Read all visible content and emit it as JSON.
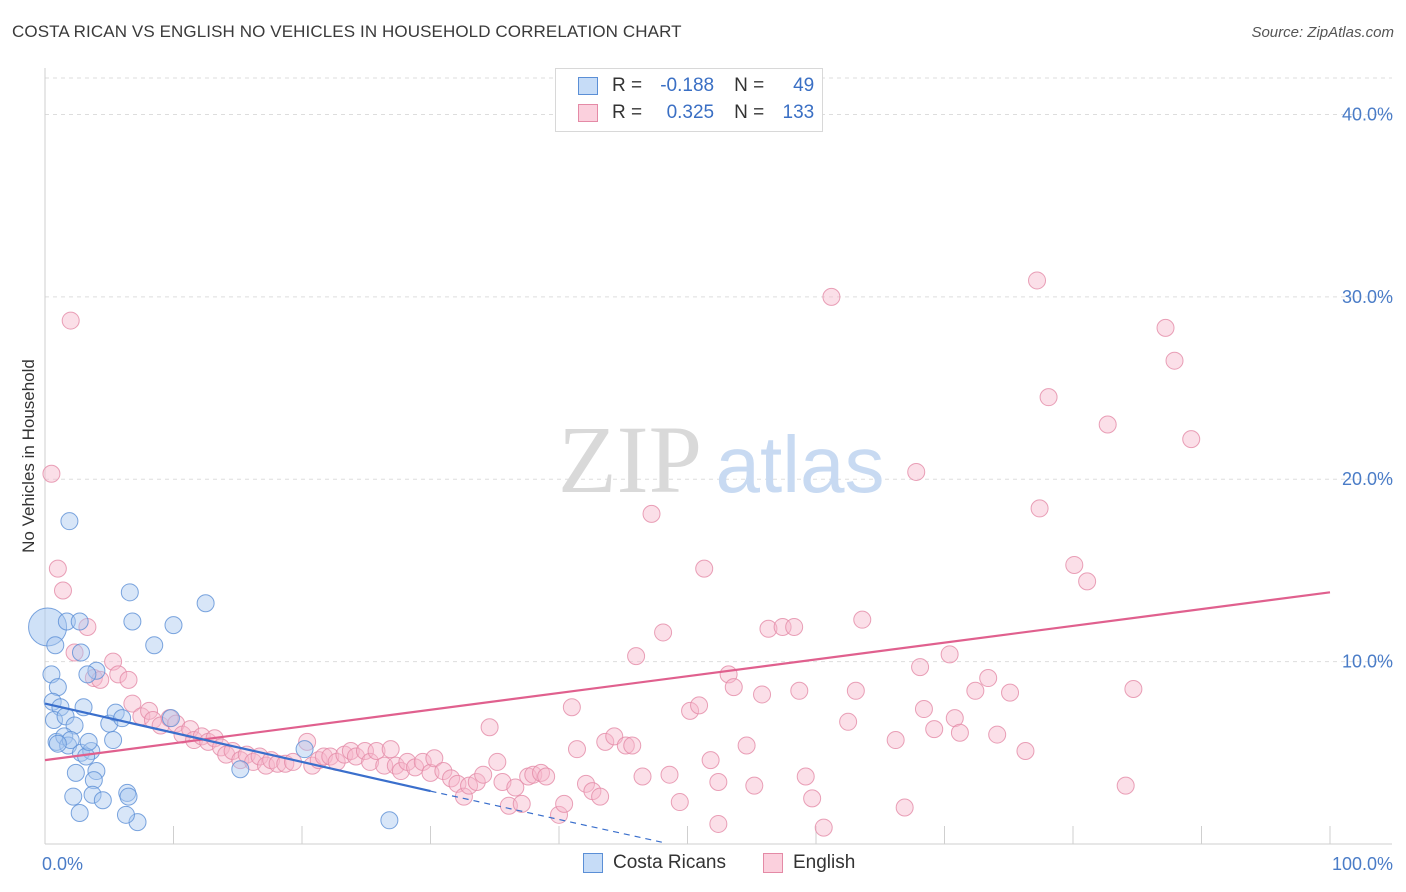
{
  "title": "COSTA RICAN VS ENGLISH NO VEHICLES IN HOUSEHOLD CORRELATION CHART",
  "source": "Source: ZipAtlas.com",
  "watermark": {
    "zip": "ZIP",
    "atlas": "atlas"
  },
  "legend_top": {
    "rows": [
      {
        "r_label": "R =",
        "r_value": "-0.188",
        "n_label": "N =",
        "n_value": "49"
      },
      {
        "r_label": "R =",
        "r_value": "0.325",
        "n_label": "N =",
        "n_value": "133"
      }
    ]
  },
  "legend_bottom": {
    "costa": "Costa Ricans",
    "english": "English"
  },
  "colors": {
    "costa_fill": "#a8c8f0",
    "costa_stroke": "#5b8fd6",
    "costa_line": "#3a6fcc",
    "english_fill": "#f7b8cb",
    "english_stroke": "#e48aa6",
    "english_line": "#e0608e",
    "tick": "#4a7cc7",
    "grid": "#dddddd"
  },
  "chart_data": {
    "type": "scatter",
    "title": "COSTA RICAN VS ENGLISH NO VEHICLES IN HOUSEHOLD CORRELATION CHART",
    "xlabel": "",
    "ylabel": "No Vehicles in Household",
    "xlim": [
      0,
      100
    ],
    "ylim": [
      0,
      42
    ],
    "x_tick_labels": [
      {
        "value": 0,
        "label": "0.0%"
      },
      {
        "value": 100,
        "label": "100.0%"
      }
    ],
    "y_tick_labels": [
      {
        "value": 10,
        "label": "10.0%"
      },
      {
        "value": 20,
        "label": "20.0%"
      },
      {
        "value": 30,
        "label": "30.0%"
      },
      {
        "value": 40,
        "label": "40.0%"
      }
    ],
    "x_minor_ticks": [
      10,
      20,
      30,
      40,
      50,
      60,
      70,
      80,
      90,
      100
    ],
    "series": [
      {
        "name": "Costa Ricans",
        "R": -0.188,
        "N": 49,
        "trend": {
          "x0": 0,
          "y0": 7.7,
          "x1": 30,
          "y1": 2.9,
          "dash_x1": 48,
          "dash_y1": 0.1
        },
        "points": [
          [
            0.2,
            11.9,
            "big"
          ],
          [
            0.5,
            9.3
          ],
          [
            0.8,
            10.9
          ],
          [
            1,
            8.6
          ],
          [
            0.6,
            7.8
          ],
          [
            1.2,
            7.5
          ],
          [
            0.7,
            6.8
          ],
          [
            1.6,
            7.0
          ],
          [
            2.3,
            6.5
          ],
          [
            0.9,
            5.6
          ],
          [
            1.5,
            5.9
          ],
          [
            1.8,
            5.4
          ],
          [
            2.0,
            5.7
          ],
          [
            2.8,
            5.0
          ],
          [
            3.6,
            5.1
          ],
          [
            3.2,
            4.8
          ],
          [
            4,
            9.5
          ],
          [
            2.8,
            10.5
          ],
          [
            3.3,
            9.3
          ],
          [
            1.7,
            12.2
          ],
          [
            2.7,
            12.2
          ],
          [
            1.9,
            17.7
          ],
          [
            6.6,
            13.8
          ],
          [
            6.8,
            12.2
          ],
          [
            8.5,
            10.9
          ],
          [
            10,
            12.0
          ],
          [
            12.5,
            13.2
          ],
          [
            3,
            7.5
          ],
          [
            5,
            6.6
          ],
          [
            5.5,
            7.2
          ],
          [
            6,
            6.9
          ],
          [
            4,
            4.0
          ],
          [
            2.4,
            3.9
          ],
          [
            3.8,
            3.5
          ],
          [
            2.2,
            2.6
          ],
          [
            3.7,
            2.7
          ],
          [
            2.7,
            1.7
          ],
          [
            4.5,
            2.4
          ],
          [
            6.4,
            2.8
          ],
          [
            6.5,
            2.6
          ],
          [
            7.2,
            1.2
          ],
          [
            6.3,
            1.6
          ],
          [
            15.2,
            4.1
          ],
          [
            9.8,
            6.9
          ],
          [
            26.8,
            1.3
          ],
          [
            20.2,
            5.2
          ],
          [
            1.0,
            5.5
          ],
          [
            3.4,
            5.6
          ],
          [
            5.3,
            5.7
          ]
        ]
      },
      {
        "name": "English",
        "R": 0.325,
        "N": 133,
        "trend": {
          "x0": 0,
          "y0": 4.6,
          "x1": 100,
          "y1": 13.8
        },
        "points": [
          [
            0.5,
            20.3
          ],
          [
            1.0,
            15.1
          ],
          [
            1.4,
            13.9
          ],
          [
            2.0,
            28.7
          ],
          [
            2.3,
            10.5
          ],
          [
            3.3,
            11.9
          ],
          [
            3.8,
            9.1
          ],
          [
            4.3,
            9.0
          ],
          [
            5.3,
            10.0
          ],
          [
            5.7,
            9.3
          ],
          [
            6.5,
            9.0
          ],
          [
            6.8,
            7.7
          ],
          [
            7.5,
            7.0
          ],
          [
            8.1,
            7.3
          ],
          [
            8.4,
            6.8
          ],
          [
            9.0,
            6.5
          ],
          [
            9.7,
            6.9
          ],
          [
            10.2,
            6.6
          ],
          [
            10.7,
            6.0
          ],
          [
            11.3,
            6.3
          ],
          [
            11.6,
            5.7
          ],
          [
            12.2,
            5.9
          ],
          [
            12.7,
            5.6
          ],
          [
            13.2,
            5.8
          ],
          [
            13.7,
            5.3
          ],
          [
            14.1,
            4.9
          ],
          [
            14.6,
            5.1
          ],
          [
            15.2,
            4.6
          ],
          [
            15.7,
            4.9
          ],
          [
            16.2,
            4.5
          ],
          [
            16.7,
            4.8
          ],
          [
            17.2,
            4.3
          ],
          [
            17.6,
            4.6
          ],
          [
            18.1,
            4.4
          ],
          [
            18.7,
            4.4
          ],
          [
            19.3,
            4.5
          ],
          [
            20.4,
            5.6
          ],
          [
            20.8,
            4.3
          ],
          [
            21.3,
            4.6
          ],
          [
            21.7,
            4.8
          ],
          [
            22.2,
            4.8
          ],
          [
            22.7,
            4.5
          ],
          [
            23.3,
            4.9
          ],
          [
            23.8,
            5.1
          ],
          [
            24.2,
            4.8
          ],
          [
            24.9,
            5.1
          ],
          [
            25.3,
            4.5
          ],
          [
            25.8,
            5.1
          ],
          [
            26.4,
            4.3
          ],
          [
            26.9,
            5.2
          ],
          [
            27.3,
            4.3
          ],
          [
            27.7,
            4.0
          ],
          [
            28.2,
            4.5
          ],
          [
            28.8,
            4.2
          ],
          [
            29.4,
            4.5
          ],
          [
            30.0,
            3.9
          ],
          [
            30.3,
            4.7
          ],
          [
            31.0,
            4.0
          ],
          [
            31.6,
            3.6
          ],
          [
            32.1,
            3.3
          ],
          [
            32.6,
            2.6
          ],
          [
            33.0,
            3.2
          ],
          [
            33.6,
            3.4
          ],
          [
            34.1,
            3.8
          ],
          [
            34.6,
            6.4
          ],
          [
            35.2,
            4.5
          ],
          [
            35.6,
            3.4
          ],
          [
            36.1,
            2.1
          ],
          [
            36.6,
            3.1
          ],
          [
            37.1,
            2.2
          ],
          [
            37.6,
            3.7
          ],
          [
            38.0,
            3.8
          ],
          [
            38.6,
            3.9
          ],
          [
            39.0,
            3.7
          ],
          [
            40.0,
            1.6
          ],
          [
            40.4,
            2.2
          ],
          [
            41.0,
            7.5
          ],
          [
            41.4,
            5.2
          ],
          [
            42.1,
            3.3
          ],
          [
            42.6,
            2.9
          ],
          [
            43.2,
            2.6
          ],
          [
            43.6,
            5.6
          ],
          [
            44.3,
            5.9
          ],
          [
            45.2,
            5.4
          ],
          [
            45.7,
            5.4
          ],
          [
            46.0,
            10.3
          ],
          [
            46.5,
            3.7
          ],
          [
            47.2,
            18.1
          ],
          [
            48.1,
            11.6
          ],
          [
            48.6,
            3.8
          ],
          [
            49.4,
            2.3
          ],
          [
            50.2,
            7.3
          ],
          [
            50.9,
            7.6
          ],
          [
            51.3,
            15.1
          ],
          [
            51.8,
            4.6
          ],
          [
            52.4,
            3.4
          ],
          [
            52.4,
            1.1
          ],
          [
            53.2,
            9.3
          ],
          [
            53.6,
            8.6
          ],
          [
            54.6,
            5.4
          ],
          [
            55.2,
            3.2
          ],
          [
            55.8,
            8.2
          ],
          [
            56.3,
            11.8
          ],
          [
            57.4,
            11.9
          ],
          [
            58.3,
            11.9
          ],
          [
            58.7,
            8.4
          ],
          [
            59.2,
            3.7
          ],
          [
            59.7,
            2.5
          ],
          [
            60.6,
            0.9
          ],
          [
            62.5,
            6.7
          ],
          [
            63.1,
            8.4
          ],
          [
            63.6,
            12.3
          ],
          [
            66.2,
            5.7
          ],
          [
            66.9,
            2.0
          ],
          [
            67.8,
            20.4
          ],
          [
            68.1,
            9.7
          ],
          [
            68.4,
            7.4
          ],
          [
            69.2,
            6.3
          ],
          [
            70.4,
            10.4
          ],
          [
            70.8,
            6.9
          ],
          [
            71.2,
            6.1
          ],
          [
            72.4,
            8.4
          ],
          [
            73.4,
            9.1
          ],
          [
            74.1,
            6.0
          ],
          [
            75.1,
            8.3
          ],
          [
            76.3,
            5.1
          ],
          [
            77.4,
            18.4
          ],
          [
            78.1,
            24.5
          ],
          [
            80.1,
            15.3
          ],
          [
            81.1,
            14.4
          ],
          [
            82.7,
            23.0
          ],
          [
            84.1,
            3.2
          ],
          [
            84.7,
            8.5
          ],
          [
            87.2,
            28.3
          ],
          [
            87.9,
            26.5
          ],
          [
            89.2,
            22.2
          ],
          [
            77.2,
            30.9
          ],
          [
            61.2,
            30.0
          ]
        ]
      }
    ]
  }
}
